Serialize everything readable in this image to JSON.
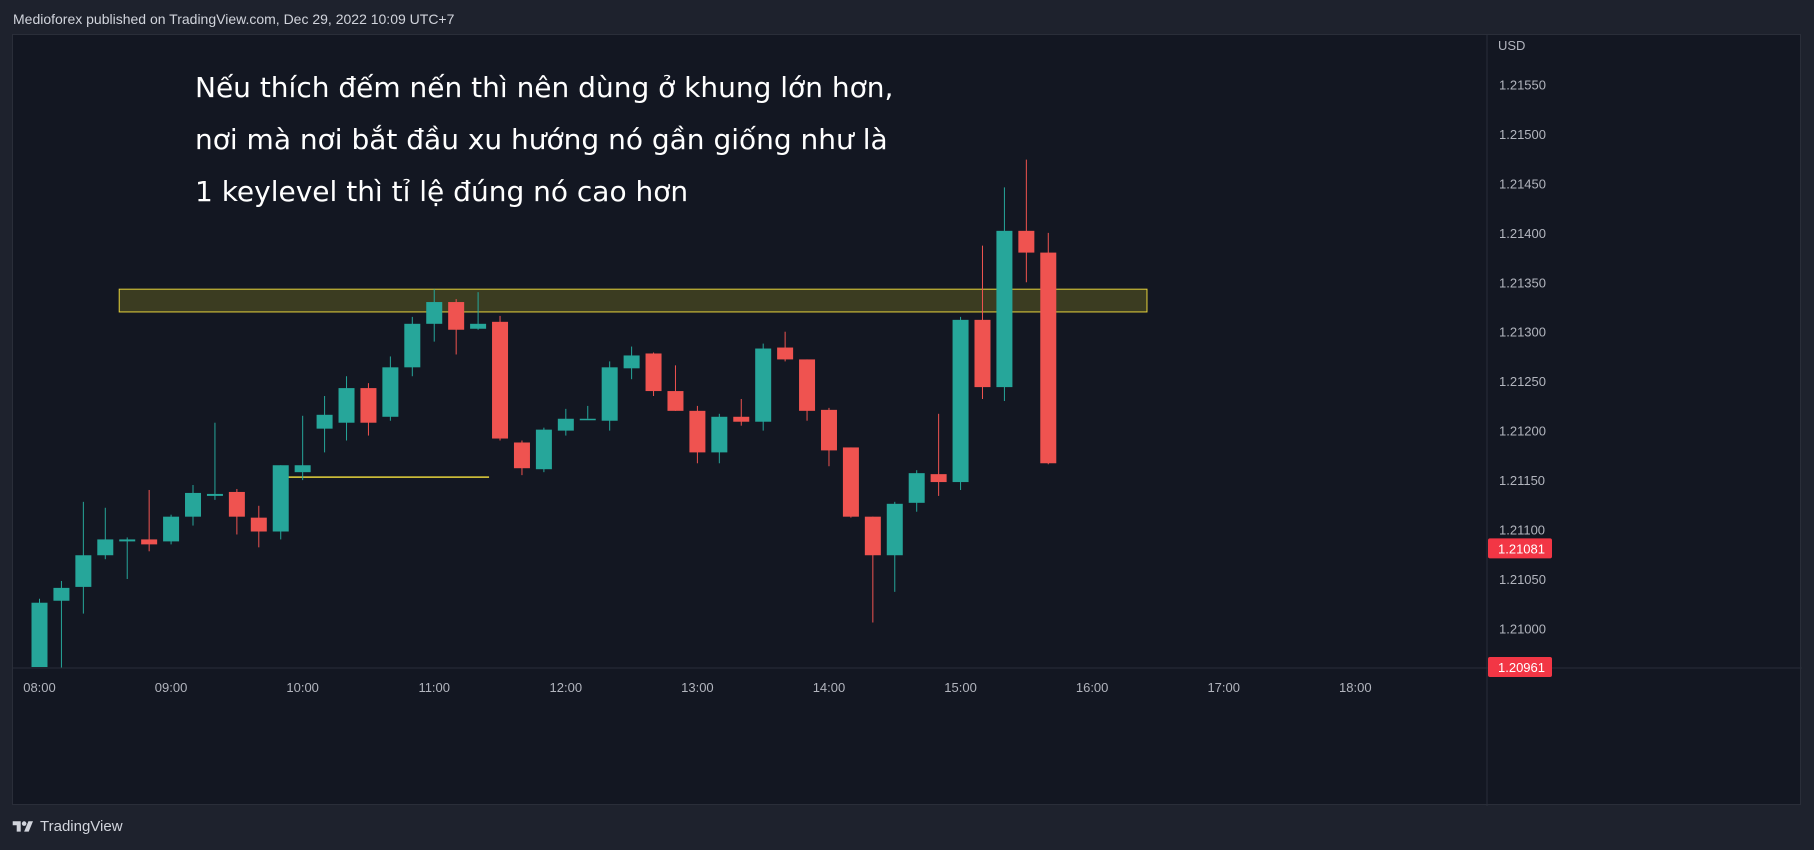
{
  "header": {
    "text": "Medioforex published on TradingView.com, Dec 29, 2022 10:09 UTC+7"
  },
  "footer": {
    "brand": "TradingView"
  },
  "colors": {
    "up": "#26a69a",
    "down": "#ef5350",
    "zone_fill": "#4a4a22",
    "zone_border": "#e6d33c",
    "support": "#e6d33c",
    "price_label": "#f23645"
  },
  "annotation": {
    "lines": [
      "Nếu thích đếm nến thì nên dùng ở khung lớn hơn,",
      "nơi mà nơi bắt đầu xu hướng nó gần giống như là",
      "1 keylevel thì tỉ lệ đúng nó cao hơn"
    ]
  },
  "chart_data": {
    "type": "candlestick",
    "currency_label": "USD",
    "y_ticks": [
      "1.21000",
      "1.21050",
      "1.21100",
      "1.21150",
      "1.21200",
      "1.21250",
      "1.21300",
      "1.21350",
      "1.21400",
      "1.21450",
      "1.21500",
      "1.21550"
    ],
    "ylim": [
      1.2096,
      1.216
    ],
    "x_ticks": [
      "08:00",
      "09:00",
      "10:00",
      "11:00",
      "12:00",
      "13:00",
      "14:00",
      "15:00",
      "16:00",
      "17:00",
      "18:00"
    ],
    "x_start": "08:00",
    "interval_minutes": 10,
    "price_labels": [
      "1.21081",
      "1.20961"
    ],
    "resistance_zone": {
      "low": 1.2132,
      "high": 1.21343,
      "start_index": 4,
      "end_index": 50.5
    },
    "support_line": {
      "value": 1.21153,
      "start_index": 11,
      "end_index": 20.5
    },
    "candles": [
      {
        "o": 1.20961,
        "h": 1.2103,
        "l": 1.20961,
        "c": 1.21026
      },
      {
        "o": 1.21028,
        "h": 1.21048,
        "l": 1.2096,
        "c": 1.21041
      },
      {
        "o": 1.21042,
        "h": 1.21128,
        "l": 1.21015,
        "c": 1.21074
      },
      {
        "o": 1.21074,
        "h": 1.21122,
        "l": 1.2107,
        "c": 1.2109
      },
      {
        "o": 1.21088,
        "h": 1.21092,
        "l": 1.2105,
        "c": 1.2109
      },
      {
        "o": 1.2109,
        "h": 1.2114,
        "l": 1.21078,
        "c": 1.21085
      },
      {
        "o": 1.21088,
        "h": 1.21115,
        "l": 1.21085,
        "c": 1.21113
      },
      {
        "o": 1.21113,
        "h": 1.21145,
        "l": 1.21104,
        "c": 1.21137
      },
      {
        "o": 1.21134,
        "h": 1.21208,
        "l": 1.2113,
        "c": 1.21136
      },
      {
        "o": 1.21138,
        "h": 1.21141,
        "l": 1.21095,
        "c": 1.21113
      },
      {
        "o": 1.21112,
        "h": 1.21124,
        "l": 1.21082,
        "c": 1.21098
      },
      {
        "o": 1.21098,
        "h": 1.21165,
        "l": 1.2109,
        "c": 1.21165
      },
      {
        "o": 1.21158,
        "h": 1.21215,
        "l": 1.2115,
        "c": 1.21165
      },
      {
        "o": 1.21202,
        "h": 1.21235,
        "l": 1.21178,
        "c": 1.21216
      },
      {
        "o": 1.21208,
        "h": 1.21255,
        "l": 1.2119,
        "c": 1.21243
      },
      {
        "o": 1.21243,
        "h": 1.21248,
        "l": 1.21195,
        "c": 1.21208
      },
      {
        "o": 1.21214,
        "h": 1.21275,
        "l": 1.2121,
        "c": 1.21264
      },
      {
        "o": 1.21264,
        "h": 1.21315,
        "l": 1.21255,
        "c": 1.21308
      },
      {
        "o": 1.21308,
        "h": 1.21343,
        "l": 1.2129,
        "c": 1.2133
      },
      {
        "o": 1.2133,
        "h": 1.21333,
        "l": 1.21277,
        "c": 1.21302
      },
      {
        "o": 1.21303,
        "h": 1.2134,
        "l": 1.21302,
        "c": 1.21308
      },
      {
        "o": 1.2131,
        "h": 1.21316,
        "l": 1.2119,
        "c": 1.21192
      },
      {
        "o": 1.21188,
        "h": 1.2119,
        "l": 1.21155,
        "c": 1.21162
      },
      {
        "o": 1.21161,
        "h": 1.21203,
        "l": 1.21158,
        "c": 1.21201
      },
      {
        "o": 1.212,
        "h": 1.21222,
        "l": 1.21195,
        "c": 1.21212
      },
      {
        "o": 1.21212,
        "h": 1.21225,
        "l": 1.21212,
        "c": 1.21212
      },
      {
        "o": 1.2121,
        "h": 1.2127,
        "l": 1.212,
        "c": 1.21264
      },
      {
        "o": 1.21263,
        "h": 1.21285,
        "l": 1.21252,
        "c": 1.21276
      },
      {
        "o": 1.21278,
        "h": 1.21279,
        "l": 1.21235,
        "c": 1.2124
      },
      {
        "o": 1.2124,
        "h": 1.21266,
        "l": 1.2122,
        "c": 1.2122
      },
      {
        "o": 1.2122,
        "h": 1.21225,
        "l": 1.21167,
        "c": 1.21178
      },
      {
        "o": 1.21178,
        "h": 1.21217,
        "l": 1.21167,
        "c": 1.21214
      },
      {
        "o": 1.21214,
        "h": 1.21232,
        "l": 1.21205,
        "c": 1.21209
      },
      {
        "o": 1.21209,
        "h": 1.21288,
        "l": 1.212,
        "c": 1.21283
      },
      {
        "o": 1.21284,
        "h": 1.213,
        "l": 1.2127,
        "c": 1.21272
      },
      {
        "o": 1.21272,
        "h": 1.21272,
        "l": 1.2121,
        "c": 1.2122
      },
      {
        "o": 1.21221,
        "h": 1.21223,
        "l": 1.21164,
        "c": 1.2118
      },
      {
        "o": 1.21183,
        "h": 1.21183,
        "l": 1.21112,
        "c": 1.21113
      },
      {
        "o": 1.21113,
        "h": 1.21113,
        "l": 1.21006,
        "c": 1.21074
      },
      {
        "o": 1.21074,
        "h": 1.21128,
        "l": 1.21037,
        "c": 1.21126
      },
      {
        "o": 1.21127,
        "h": 1.2116,
        "l": 1.21118,
        "c": 1.21157
      },
      {
        "o": 1.21156,
        "h": 1.21217,
        "l": 1.21134,
        "c": 1.21148
      },
      {
        "o": 1.21148,
        "h": 1.21315,
        "l": 1.2114,
        "c": 1.21312
      },
      {
        "o": 1.21312,
        "h": 1.21387,
        "l": 1.21232,
        "c": 1.21244
      },
      {
        "o": 1.21244,
        "h": 1.21446,
        "l": 1.2123,
        "c": 1.21402
      },
      {
        "o": 1.21402,
        "h": 1.21474,
        "l": 1.2135,
        "c": 1.2138
      },
      {
        "o": 1.2138,
        "h": 1.214,
        "l": 1.21166,
        "c": 1.21167
      }
    ]
  }
}
